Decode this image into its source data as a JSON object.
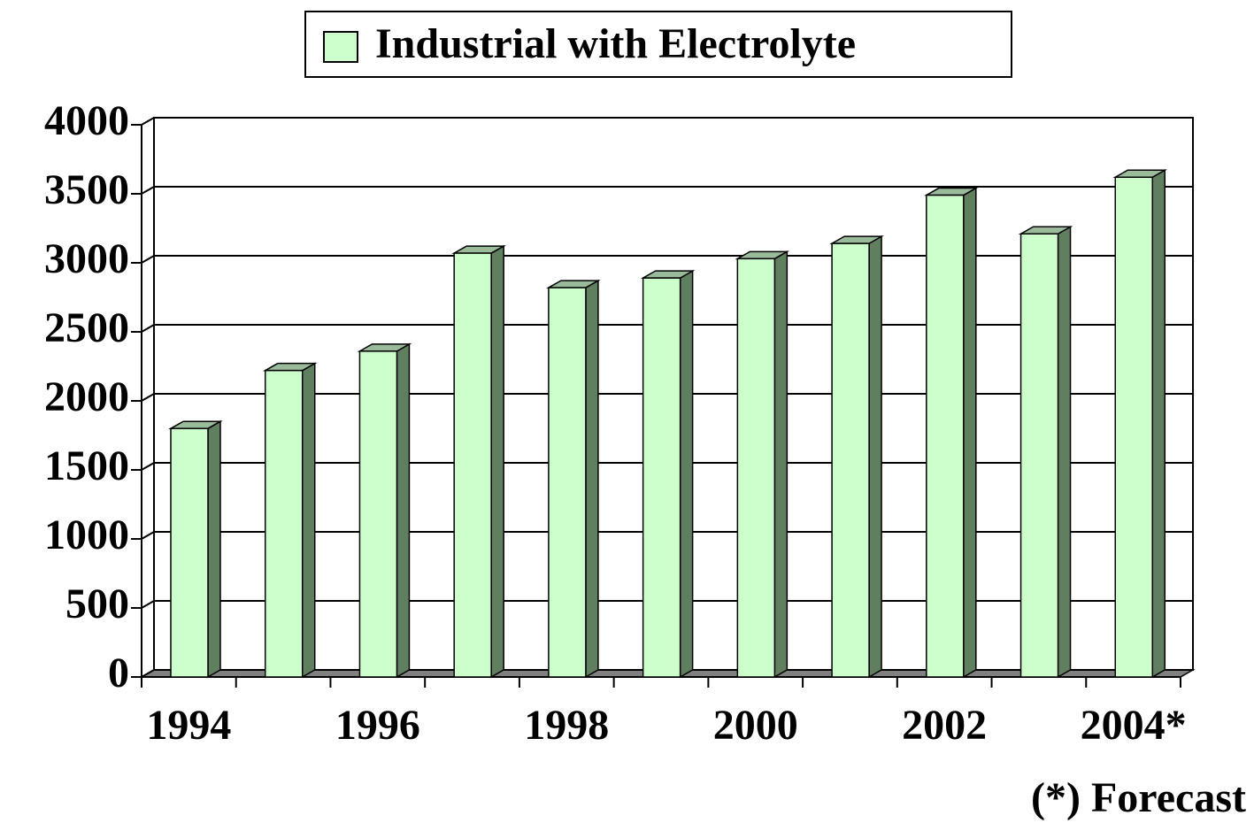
{
  "chart_data": {
    "type": "bar3d",
    "categories": [
      "1994",
      null,
      "1996",
      null,
      "1998",
      null,
      "2000",
      null,
      "2002",
      null,
      "2004*"
    ],
    "series": [
      {
        "name": "Industrial with Electrolyte",
        "color": "#ccffcc",
        "values": [
          1800,
          2220,
          2360,
          3070,
          2820,
          2890,
          3030,
          3140,
          3490,
          3210,
          3620
        ]
      }
    ],
    "ylim": [
      0,
      4000
    ],
    "yticks": [
      0,
      500,
      1000,
      1500,
      2000,
      2500,
      3000,
      3500,
      4000
    ],
    "grid": true,
    "legend": "top",
    "annotation": "(*) Forecast"
  }
}
